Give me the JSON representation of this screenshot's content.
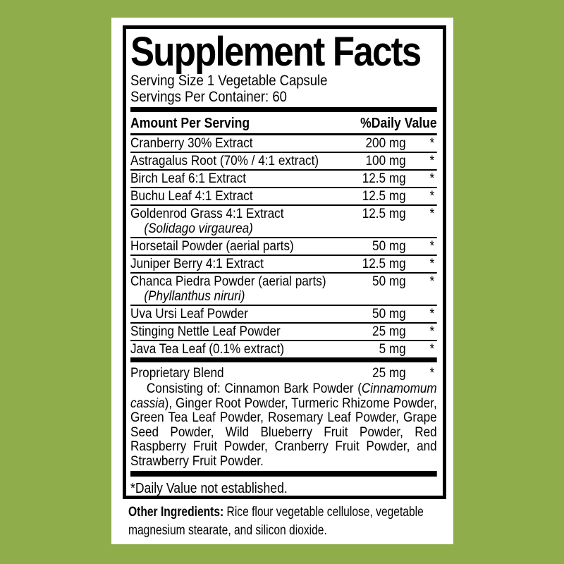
{
  "label": {
    "title": "Supplement Facts",
    "serving_size": "Serving Size 1 Vegetable Capsule",
    "servings_per_container": "Servings Per Container: 60",
    "columns": {
      "amount": "Amount Per Serving",
      "dv": "%Daily Value"
    },
    "rows": [
      {
        "name": "Cranberry 30% Extract",
        "amount": "200 mg",
        "dv": "*"
      },
      {
        "name": "Astragalus Root (70% / 4:1 extract)",
        "amount": "100 mg",
        "dv": "*"
      },
      {
        "name": "Birch Leaf 6:1 Extract",
        "amount": "12.5 mg",
        "dv": "*"
      },
      {
        "name": "Buchu Leaf 4:1 Extract",
        "amount": "12.5 mg",
        "dv": "*"
      },
      {
        "name": "Goldenrod Grass 4:1 Extract",
        "sub": "(Solidago virgaurea)",
        "amount": "12.5 mg",
        "dv": "*"
      },
      {
        "name": "Horsetail Powder (aerial parts)",
        "amount": "50 mg",
        "dv": "*"
      },
      {
        "name": "Juniper Berry 4:1 Extract",
        "amount": "12.5 mg",
        "dv": "*"
      },
      {
        "name": "Chanca Piedra Powder (aerial parts)",
        "sub": "(Phyllanthus niruri)",
        "amount": "50 mg",
        "dv": "*"
      },
      {
        "name": "Uva Ursi Leaf Powder",
        "amount": "50 mg",
        "dv": "*"
      },
      {
        "name": "Stinging Nettle Leaf Powder",
        "amount": "25 mg",
        "dv": "*"
      },
      {
        "name": "Java Tea Leaf (0.1% extract)",
        "amount": "5 mg",
        "dv": "*"
      }
    ],
    "blend": {
      "name": "Proprietary Blend",
      "amount": "25 mg",
      "dv": "*",
      "description": [
        {
          "t": "Consisting of: Cinnamon Bark Powder ("
        },
        {
          "t": "Cinnamomum cassia",
          "i": true
        },
        {
          "t": "), Ginger Root Powder, Turmeric Rhizome Powder, Green Tea Leaf Powder, Rosemary Leaf Powder, Grape Seed Powder, Wild Blueberry Fruit Powder, Red Raspberry Fruit Powder, Cranberry Fruit Powder, and Strawberry Fruit Powder."
        }
      ]
    },
    "footnote": "*Daily Value not established.",
    "other_ingredients": {
      "label": "Other Ingredients:",
      "text": " Rice flour vegetable cellulose, vegetable magnesium stearate, and silicon dioxide."
    },
    "colors": {
      "background": "#8FAD4A",
      "panel": "#FFFFFF",
      "ink": "#000000"
    }
  }
}
